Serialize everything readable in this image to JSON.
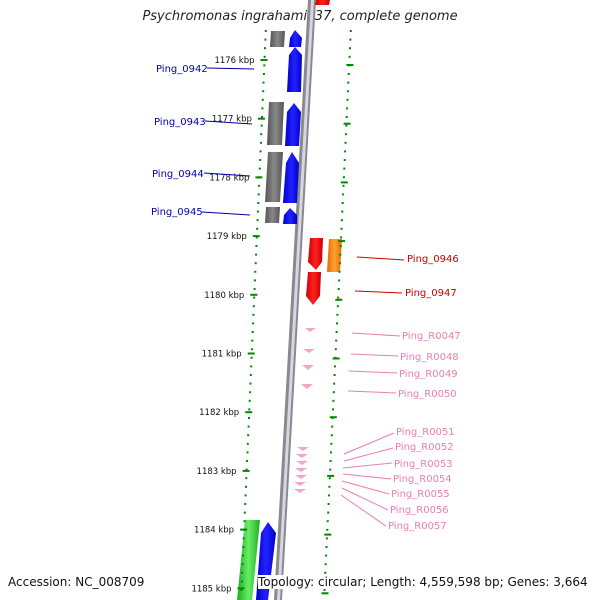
{
  "title": "Psychromonas ingrahamii 37, complete genome",
  "accession": "Accession: NC_008709",
  "topology": "Topology: circular; Length: 4,559,598 bp; Genes: 3,664",
  "kbp_ticks": [
    "1176 kbp",
    "1177 kbp",
    "1178 kbp",
    "1179 kbp",
    "1180 kbp",
    "1181 kbp",
    "1182 kbp",
    "1183 kbp",
    "1184 kbp",
    "1185 kbp"
  ],
  "genes_left": [
    {
      "label": "Ping_0942",
      "color": "#0000aa"
    },
    {
      "label": "Ping_0943",
      "color": "#0000aa"
    },
    {
      "label": "Ping_0944",
      "color": "#0000aa"
    },
    {
      "label": "Ping_0945",
      "color": "#0000aa"
    }
  ],
  "genes_right": [
    {
      "label": "Ping_0946",
      "color": "#cc0000"
    },
    {
      "label": "Ping_0947",
      "color": "#cc0000"
    }
  ],
  "rna_right": [
    {
      "label": "Ping_R0047",
      "color": "#e87fb0"
    },
    {
      "label": "Ping_R0048",
      "color": "#e87fb0"
    },
    {
      "label": "Ping_R0049",
      "color": "#e87fb0"
    },
    {
      "label": "Ping_R0050",
      "color": "#e87fb0"
    },
    {
      "label": "Ping_R0051",
      "color": "#e87fb0"
    },
    {
      "label": "Ping_R0052",
      "color": "#e87fb0"
    },
    {
      "label": "Ping_R0053",
      "color": "#e87fb0"
    },
    {
      "label": "Ping_R0054",
      "color": "#e87fb0"
    },
    {
      "label": "Ping_R0055",
      "color": "#e87fb0"
    },
    {
      "label": "Ping_R0056",
      "color": "#e87fb0"
    },
    {
      "label": "Ping_R0057",
      "color": "#e87fb0"
    }
  ],
  "colors": {
    "forward_cds": "#0000ee",
    "reverse_cds": "#ee0000",
    "other": "#ff8c00",
    "gray_block": "#666666",
    "green_block": "#33cc33",
    "rna": "#f4a6c8",
    "tick": "#008800"
  }
}
